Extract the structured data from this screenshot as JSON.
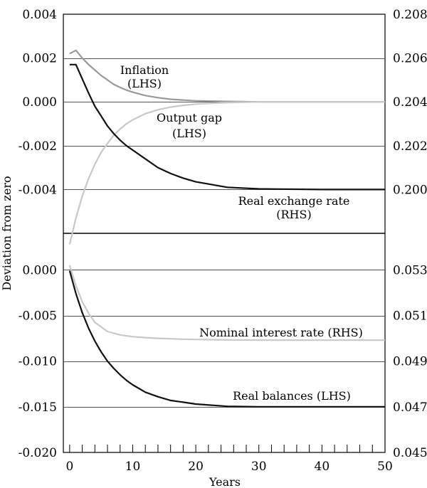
{
  "chart_data": {
    "type": "line",
    "ylabel": "Deviation from zero",
    "xlabel": "Years",
    "x_ticks": [
      "0",
      "10",
      "20",
      "30",
      "40",
      "50"
    ],
    "x_range": [
      -1,
      50
    ],
    "panels": [
      {
        "name": "top",
        "left_axis": {
          "range": [
            -0.006,
            0.004
          ],
          "ticks": [
            "-0.004",
            "-0.002",
            "0.000",
            "0.002",
            "0.004"
          ]
        },
        "right_axis": {
          "range": [
            0.198,
            0.208
          ],
          "ticks": [
            "0.200",
            "0.202",
            "0.204",
            "0.206",
            "0.208"
          ]
        },
        "series": [
          {
            "name": "Inflation",
            "axis": "LHS",
            "color": "#999999",
            "label": "Inflation",
            "sublabel": "(LHS)",
            "x": [
              0,
              1,
              2,
              3,
              4,
              5,
              6,
              7,
              8,
              9,
              10,
              12,
              14,
              16,
              18,
              20,
              25,
              30,
              40,
              50
            ],
            "y": [
              0.0022,
              0.00235,
              0.002,
              0.0017,
              0.00145,
              0.0012,
              0.001,
              0.0008,
              0.00066,
              0.00054,
              0.00044,
              0.00029,
              0.00019,
              0.00012,
              8e-05,
              5e-05,
              2e-05,
              0.0,
              0.0,
              0.0
            ]
          },
          {
            "name": "Output gap",
            "axis": "LHS",
            "color": "#c8c8c8",
            "label": "Output gap",
            "sublabel": "(LHS)",
            "x": [
              0,
              1,
              2,
              3,
              4,
              5,
              6,
              7,
              8,
              9,
              10,
              12,
              14,
              16,
              18,
              20,
              25,
              30,
              40,
              50
            ],
            "y": [
              -0.0065,
              -0.0053,
              -0.0043,
              -0.0035,
              -0.00285,
              -0.0023,
              -0.0019,
              -0.00152,
              -0.00124,
              -0.001,
              -0.00082,
              -0.00054,
              -0.00036,
              -0.00024,
              -0.00016,
              -0.0001,
              -3e-05,
              0.0,
              0.0,
              0.0
            ]
          },
          {
            "name": "Real exchange rate",
            "axis": "RHS",
            "color": "#111111",
            "label": "Real exchange rate",
            "sublabel": "(RHS)",
            "x": [
              0,
              1,
              1,
              2,
              3,
              4,
              5,
              6,
              7,
              8,
              9,
              10,
              12,
              14,
              16,
              18,
              20,
              25,
              30,
              40,
              50
            ],
            "y": [
              0.2057,
              0.2057,
              0.2057,
              0.20505,
              0.2044,
              0.2038,
              0.20335,
              0.2029,
              0.20255,
              0.20225,
              0.202,
              0.2018,
              0.2014,
              0.201,
              0.20073,
              0.20052,
              0.20035,
              0.2001,
              0.20003,
              0.2,
              0.2
            ]
          }
        ]
      },
      {
        "name": "bottom",
        "left_axis": {
          "range": [
            -0.02,
            0.004
          ],
          "ticks": [
            "-0.020",
            "-0.015",
            "-0.010",
            "-0.005",
            "0.000"
          ]
        },
        "right_axis": {
          "range": [
            0.045,
            0.0546
          ],
          "ticks": [
            "0.045",
            "0.047",
            "0.049",
            "0.051",
            "0.053"
          ]
        },
        "series": [
          {
            "name": "Nominal interest rate",
            "axis": "RHS",
            "color": "#c8c8c8",
            "label": "Nominal interest rate (RHS)",
            "x": [
              0,
              1,
              2,
              3,
              4,
              5,
              6,
              8,
              10,
              12,
              14,
              16,
              18,
              20,
              25,
              30,
              40,
              50
            ],
            "y": [
              0.0532,
              0.0523,
              0.0516,
              0.0511,
              0.0507,
              0.0505,
              0.0503,
              0.05015,
              0.05007,
              0.05003,
              0.05,
              0.04998,
              0.04996,
              0.04995,
              0.04993,
              0.04992,
              0.04992,
              0.04992
            ]
          },
          {
            "name": "Real balances",
            "axis": "LHS",
            "color": "#111111",
            "label": "Real balances (LHS)",
            "x": [
              0,
              1,
              2,
              3,
              4,
              5,
              6,
              7,
              8,
              9,
              10,
              12,
              14,
              16,
              18,
              20,
              25,
              30,
              40,
              50
            ],
            "y": [
              -0.0001,
              -0.0026,
              -0.0047,
              -0.0064,
              -0.0078,
              -0.009,
              -0.01,
              -0.0108,
              -0.0115,
              -0.0121,
              -0.0126,
              -0.0134,
              -0.0139,
              -0.0143,
              -0.0145,
              -0.0147,
              -0.01495,
              -0.015,
              -0.015,
              -0.015
            ]
          }
        ]
      }
    ]
  }
}
